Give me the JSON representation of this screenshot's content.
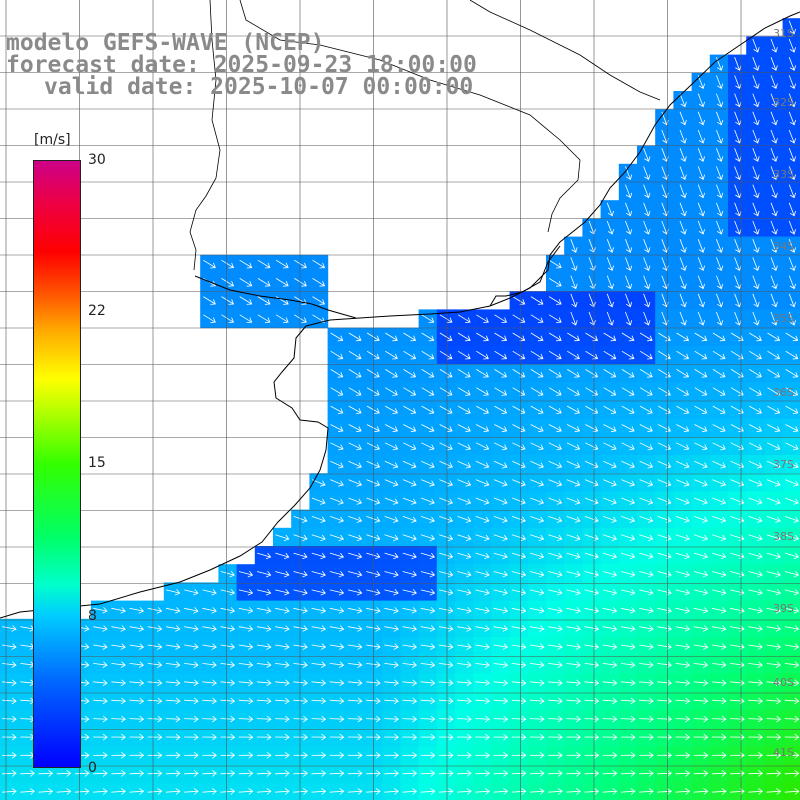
{
  "title": {
    "line1": "modelo GEFS-WAVE (NCEP)",
    "line2": "forecast date: 2025-09-23 18:00:00",
    "line3": "valid date: 2025-10-07 00:00:00"
  },
  "colorbar": {
    "unit": "[m/s]",
    "ticks": [
      "30",
      "22",
      "15",
      "8",
      "0"
    ],
    "min": 0,
    "max": 30
  },
  "lat_labels": [
    "31S",
    "32S",
    "33S",
    "34S",
    "35S",
    "36S",
    "37S",
    "38S",
    "39S",
    "40S",
    "41S"
  ],
  "colors": {
    "land": "#ffffff",
    "coast": "#000000",
    "grid": "#555555",
    "arrow": "#ffffff",
    "title_text": "#8a8a8a"
  }
}
